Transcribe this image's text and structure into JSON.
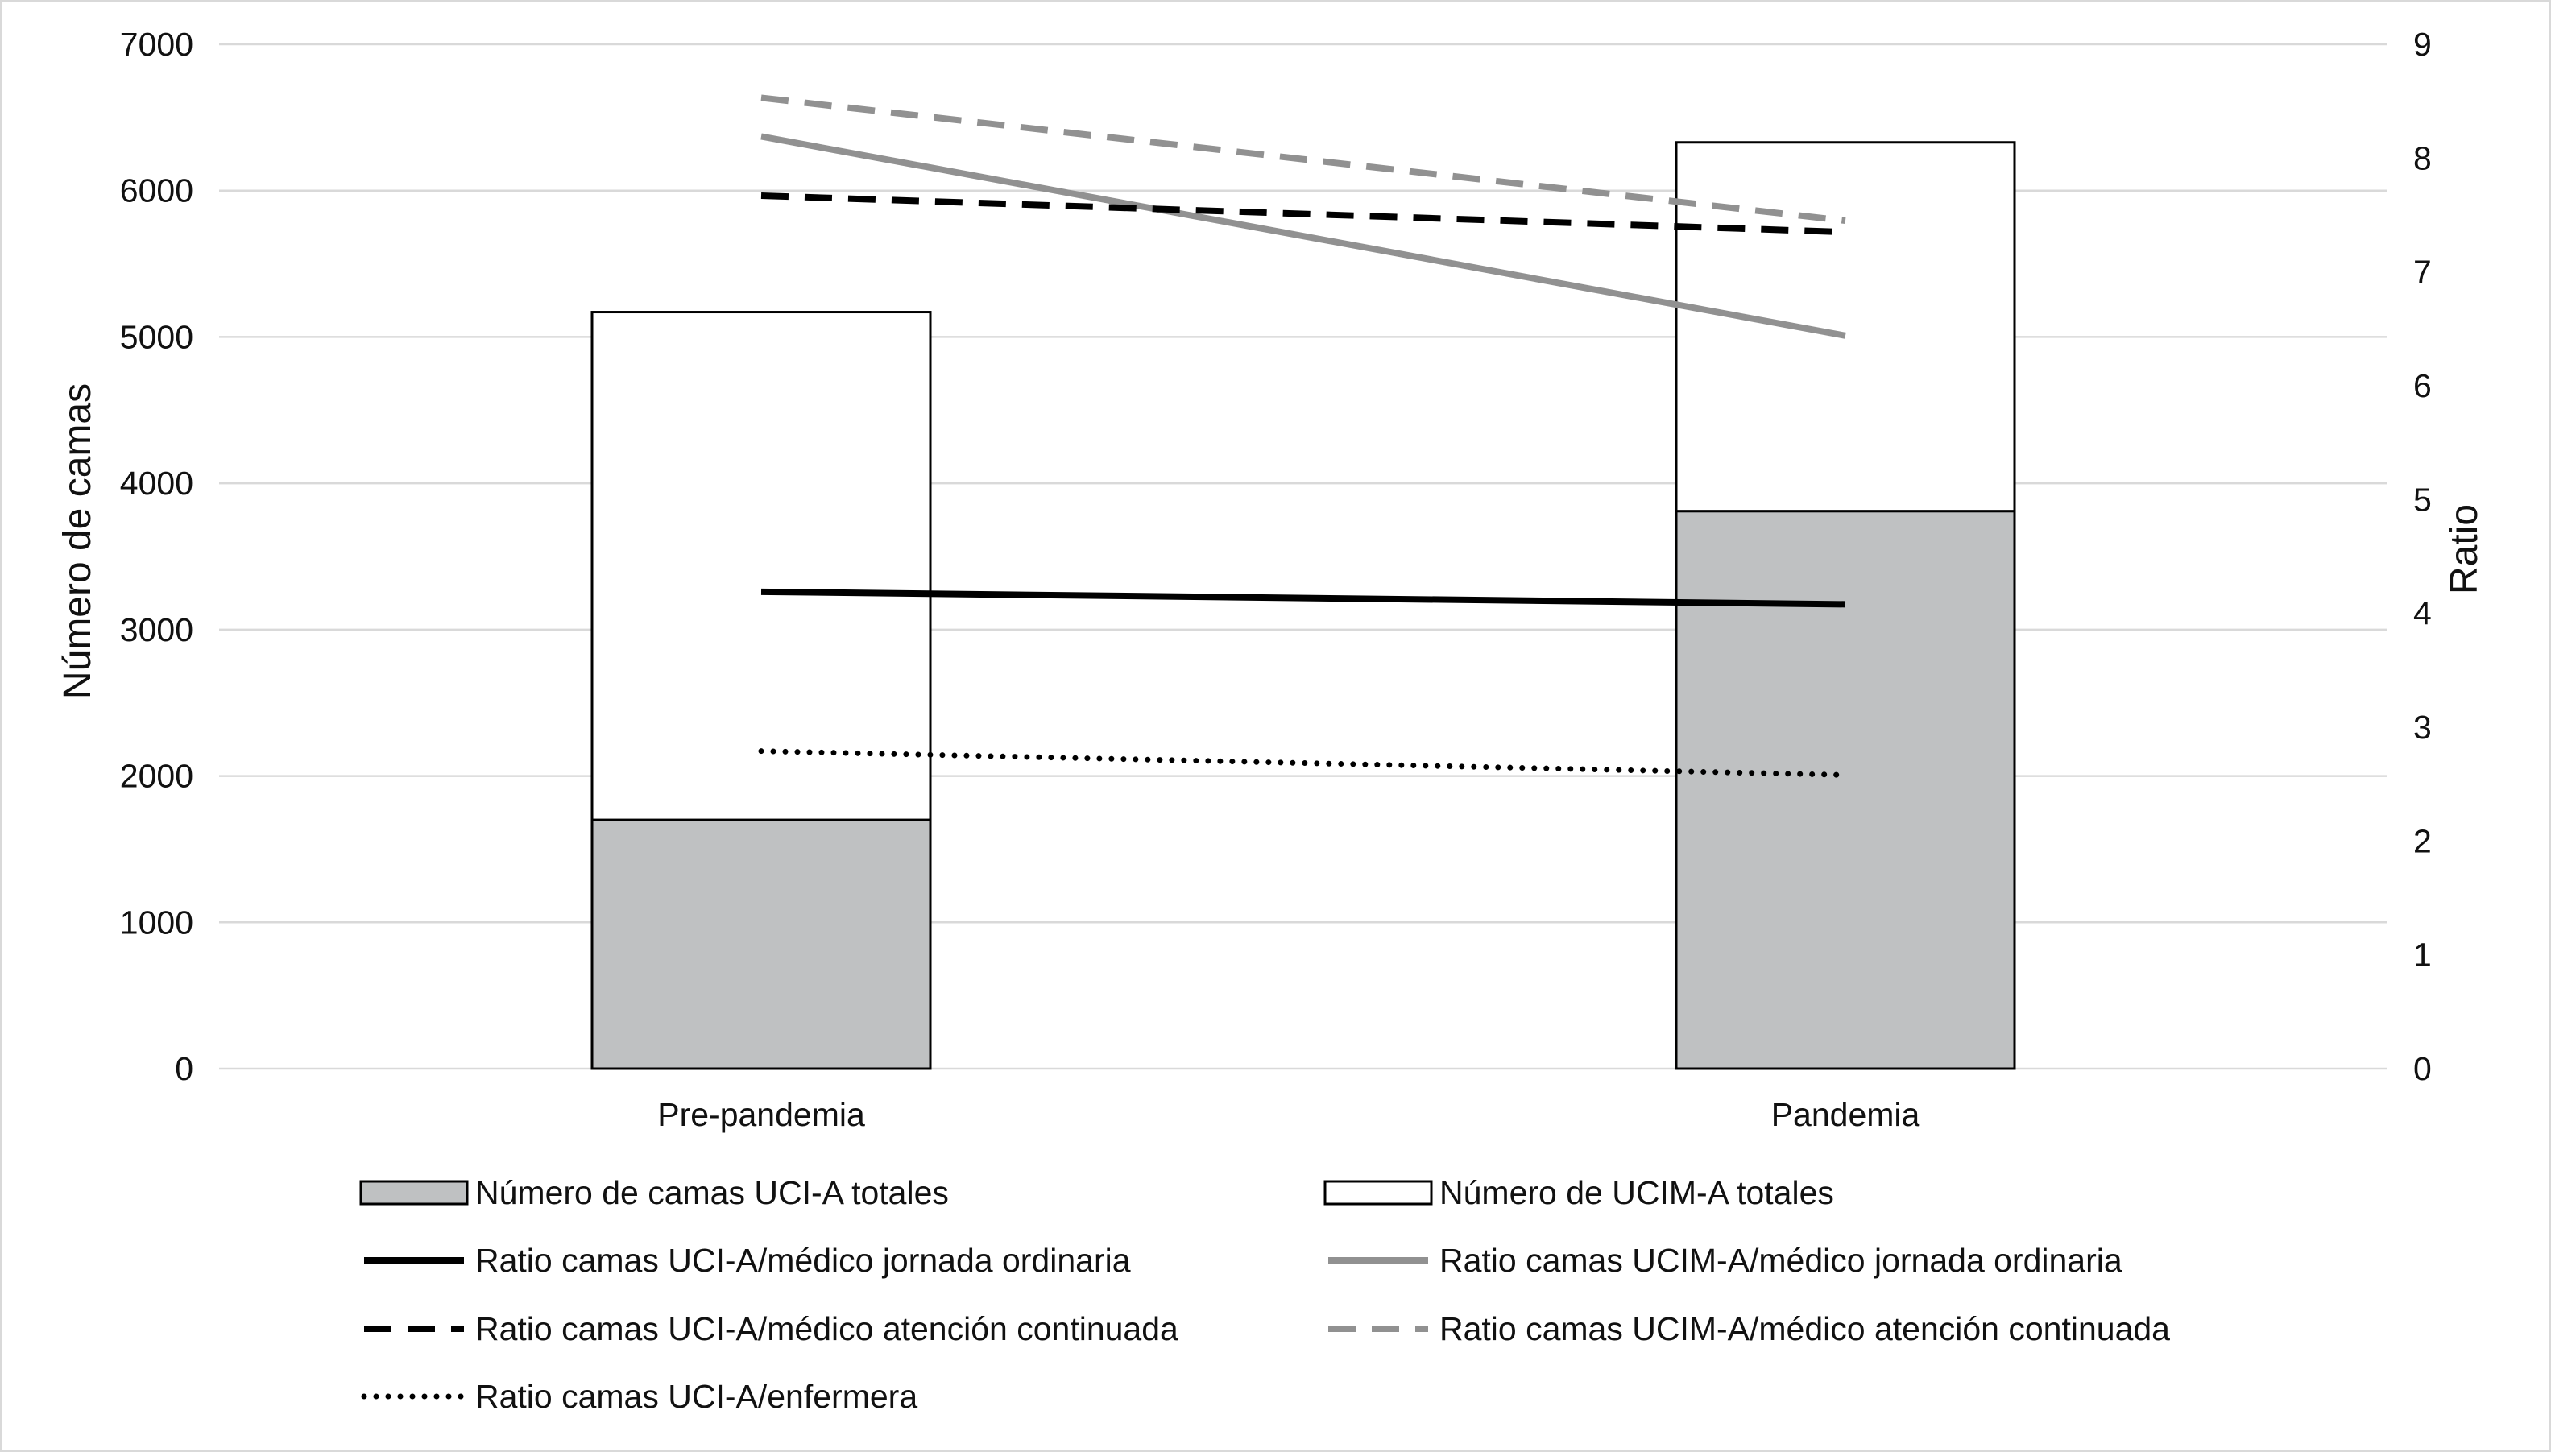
{
  "chart_data": {
    "type": "bar",
    "stacked": true,
    "categories": [
      "Pre-pandemia",
      "Pandemia"
    ],
    "ylabel": "Número de camas",
    "y2label": "Ratio",
    "ylim": [
      0,
      7000
    ],
    "y2lim": [
      0,
      9
    ],
    "yticks": [
      "0",
      "1000",
      "2000",
      "3000",
      "4000",
      "5000",
      "6000",
      "7000"
    ],
    "y2ticks": [
      "0",
      "1",
      "2",
      "3",
      "4",
      "5",
      "6",
      "7",
      "8",
      "9"
    ],
    "grid": true,
    "legend_position": "bottom",
    "bar_series": [
      {
        "name": "Número de camas UCI-A totales",
        "values": [
          1700,
          3810
        ],
        "color": "#bfc1c2"
      },
      {
        "name": "Número de UCIM-A totales",
        "values": [
          3470,
          2520
        ],
        "color": "#ffffff"
      }
    ],
    "line_series": [
      {
        "name": "Ratio camas UCI-A/médico jornada ordinaria",
        "values": [
          4.19,
          4.08
        ],
        "color": "#000000",
        "style": "solid"
      },
      {
        "name": "Ratio camas UCIM-A/médico jornada ordinaria",
        "values": [
          8.19,
          6.44
        ],
        "color": "#919191",
        "style": "solid"
      },
      {
        "name": "Ratio camas UCI-A/médico atención continuada",
        "values": [
          7.67,
          7.35
        ],
        "color": "#000000",
        "style": "dashed"
      },
      {
        "name": "Ratio camas UCIM-A/médico atención continuada",
        "values": [
          8.53,
          7.45
        ],
        "color": "#919191",
        "style": "dashed"
      },
      {
        "name": "Ratio camas UCI-A/enfermera",
        "values": [
          2.79,
          2.58
        ],
        "color": "#000000",
        "style": "dotted"
      }
    ]
  }
}
